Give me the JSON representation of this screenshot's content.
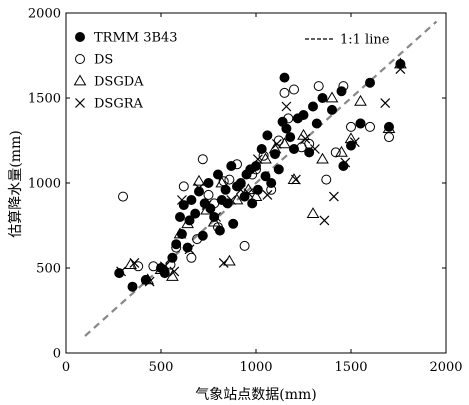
{
  "chart_data": {
    "type": "scatter",
    "title": "",
    "xlabel": "气象站点数据(mm)",
    "ylabel": "估算降水量(mm)",
    "xlim": [
      0,
      2000
    ],
    "ylim": [
      0,
      2000
    ],
    "xticks": [
      "0",
      "500",
      "1000",
      "1500",
      "2000"
    ],
    "yticks": [
      "0",
      "500",
      "1000",
      "1500",
      "2000"
    ],
    "grid": false,
    "legend_position": "top-left",
    "reference_line": {
      "label": "1:1 line",
      "x": [
        100,
        1950
      ],
      "y": [
        100,
        1950
      ],
      "color": "#888888",
      "style": "dashed"
    },
    "series": [
      {
        "name": "TRMM 3B43",
        "marker": "filled-circle",
        "color": "#000000",
        "x": [
          280,
          350,
          420,
          500,
          520,
          560,
          580,
          600,
          610,
          620,
          640,
          650,
          660,
          680,
          700,
          720,
          730,
          750,
          760,
          780,
          800,
          810,
          820,
          840,
          850,
          870,
          880,
          900,
          920,
          940,
          950,
          970,
          980,
          1000,
          1010,
          1030,
          1050,
          1060,
          1080,
          1100,
          1120,
          1140,
          1150,
          1160,
          1180,
          1200,
          1220,
          1250,
          1280,
          1300,
          1320,
          1350,
          1400,
          1450,
          1460,
          1500,
          1550,
          1600,
          1700,
          1760
        ],
        "y": [
          470,
          390,
          430,
          500,
          470,
          560,
          640,
          800,
          700,
          870,
          620,
          780,
          900,
          820,
          950,
          690,
          880,
          1000,
          850,
          800,
          1050,
          720,
          900,
          960,
          880,
          1100,
          760,
          980,
          1000,
          920,
          1050,
          1080,
          880,
          1100,
          960,
          1200,
          1040,
          1280,
          1000,
          1170,
          1080,
          1360,
          1620,
          1320,
          1270,
          1200,
          1380,
          1400,
          1180,
          1450,
          1350,
          1500,
          1430,
          1540,
          1100,
          1220,
          1350,
          1590,
          1330,
          1700
        ]
      },
      {
        "name": "DS",
        "marker": "open-circle",
        "color": "#000000",
        "x": [
          300,
          380,
          460,
          550,
          580,
          620,
          660,
          690,
          720,
          750,
          780,
          800,
          830,
          860,
          900,
          940,
          980,
          1000,
          1040,
          1080,
          1120,
          1150,
          1170,
          1200,
          1240,
          1280,
          1330,
          1370,
          1420,
          1460,
          1500,
          1550,
          1600,
          1700
        ],
        "y": [
          920,
          510,
          510,
          520,
          620,
          980,
          560,
          670,
          1140,
          930,
          880,
          740,
          1010,
          1020,
          1110,
          630,
          1050,
          1080,
          1160,
          960,
          1250,
          1530,
          1380,
          1550,
          1210,
          1230,
          1570,
          1020,
          1180,
          1570,
          1330,
          1350,
          1330,
          1270
        ]
      },
      {
        "name": "DSGDA",
        "marker": "open-triangle",
        "color": "#000000",
        "x": [
          340,
          430,
          500,
          560,
          600,
          640,
          700,
          740,
          780,
          820,
          860,
          900,
          960,
          1000,
          1050,
          1100,
          1150,
          1200,
          1250,
          1300,
          1350,
          1400,
          1450,
          1500,
          1550,
          1700,
          1760
        ],
        "y": [
          520,
          430,
          490,
          450,
          700,
          760,
          1010,
          840,
          770,
          1000,
          540,
          900,
          960,
          920,
          1140,
          1200,
          1230,
          1020,
          1280,
          820,
          1140,
          1500,
          1180,
          1260,
          1480,
          1320,
          1700
        ]
      },
      {
        "name": "DSGRA",
        "marker": "x",
        "color": "#000000",
        "x": [
          290,
          360,
          440,
          520,
          570,
          610,
          650,
          700,
          740,
          790,
          830,
          870,
          920,
          960,
          1010,
          1060,
          1110,
          1160,
          1210,
          1260,
          1310,
          1360,
          1410,
          1470,
          1520,
          1680,
          1760
        ],
        "y": [
          480,
          530,
          420,
          510,
          480,
          900,
          610,
          970,
          870,
          800,
          530,
          900,
          960,
          940,
          1140,
          930,
          1230,
          1450,
          1020,
          1260,
          1200,
          780,
          920,
          1120,
          1240,
          1470,
          1670
        ]
      }
    ]
  }
}
